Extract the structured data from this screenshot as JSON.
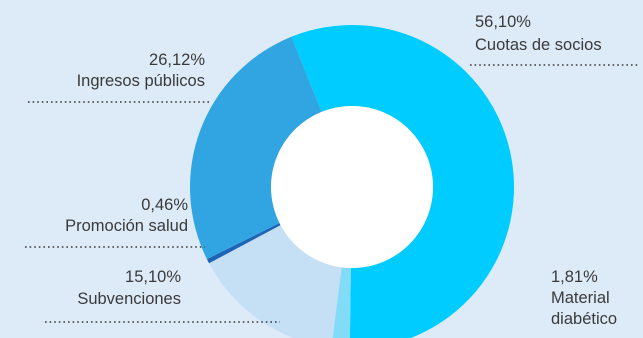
{
  "chart_data": {
    "type": "pie",
    "title": "",
    "donut": true,
    "start_angle_deg": -22,
    "slices": [
      {
        "label": "Cuotas de socios",
        "value": 56.1,
        "value_text": "56,10%",
        "color": "#00ccff"
      },
      {
        "label": "Material diabético",
        "value": 1.81,
        "value_text": "1,81%",
        "color": "#82dbf7"
      },
      {
        "label": "Subvenciones",
        "value": 15.1,
        "value_text": "15,10%",
        "color": "#c5dff5"
      },
      {
        "label": "Promoción salud",
        "value": 0.46,
        "value_text": "0,46%",
        "color": "#1e64b4"
      },
      {
        "label": "Ingresos públicos",
        "value": 26.12,
        "value_text": "26,12%",
        "color": "#30a5e2"
      }
    ],
    "label_lines": [
      [
        "56,10%",
        "Cuotas de socios"
      ],
      [
        "1,81%",
        "Material",
        "diabético"
      ],
      [
        "15,10%",
        "Subvenciones"
      ],
      [
        "0,46%",
        "Promoción salud"
      ],
      [
        "26,12%",
        "Ingresos públicos"
      ]
    ]
  }
}
